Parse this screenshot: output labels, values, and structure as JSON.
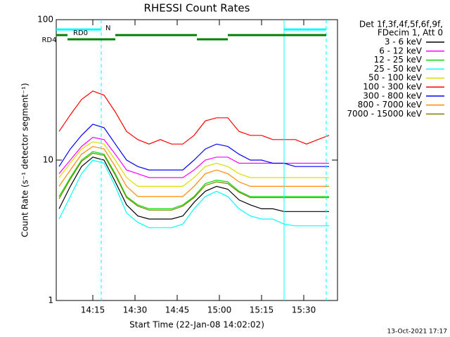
{
  "chart_data": {
    "type": "line",
    "title": "RHESSI Count Rates",
    "x_label": "Start Time (22-Jan-08 14:02:02)",
    "y_label": "Count Rate (s⁻¹ detector segment⁻¹)",
    "legend_header": [
      "Det 1f,3f,4f,5f,6f,9f,",
      "FDecim 1, Att 0"
    ],
    "footer": "13-Oct-2021 17:17",
    "log_y": true,
    "xlim": [
      "14:02",
      "15:42"
    ],
    "xticks": [
      "14:15",
      "14:30",
      "14:45",
      "15:00",
      "15:15",
      "15:30"
    ],
    "ylim": [
      1,
      100
    ],
    "yticks": [
      1,
      10,
      100
    ],
    "x": [
      "14:03",
      "14:07",
      "14:11",
      "14:15",
      "14:19",
      "14:23",
      "14:27",
      "14:31",
      "14:35",
      "14:39",
      "14:43",
      "14:47",
      "14:51",
      "14:55",
      "14:59",
      "15:03",
      "15:07",
      "15:11",
      "15:15",
      "15:19",
      "15:23",
      "15:27",
      "15:31",
      "15:35",
      "15:39"
    ],
    "series": [
      {
        "name": "3 - 6 keV",
        "color": "#000000",
        "values": [
          4.5,
          6.5,
          9,
          10.5,
          10,
          7,
          4.8,
          4,
          3.8,
          3.8,
          3.8,
          4,
          5,
          6,
          6.5,
          6.2,
          5.2,
          4.8,
          4.5,
          4.5,
          4.3,
          4.3,
          4.3,
          4.3,
          4.3
        ]
      },
      {
        "name": "6 - 12 keV",
        "color": "#ff00ff",
        "values": [
          8,
          10,
          12.5,
          14.5,
          14,
          11,
          8.5,
          8,
          7.5,
          7.5,
          7.5,
          7.5,
          8.5,
          10,
          10.5,
          10.5,
          9.5,
          9.5,
          9.5,
          9.5,
          9.5,
          9.5,
          9.5,
          9.5,
          9.5
        ]
      },
      {
        "name": "12 - 25 keV",
        "color": "#00dd00",
        "values": [
          5.5,
          7.5,
          10,
          11.5,
          11,
          8,
          5.5,
          4.8,
          4.5,
          4.5,
          4.5,
          4.8,
          5.5,
          6.8,
          7.2,
          7,
          6,
          5.5,
          5.5,
          5.5,
          5.5,
          5.5,
          5.5,
          5.5,
          5.5
        ]
      },
      {
        "name": "25 - 50 keV",
        "color": "#00ffff",
        "values": [
          3.8,
          5.5,
          8,
          10,
          9.5,
          6.5,
          4.2,
          3.6,
          3.3,
          3.3,
          3.3,
          3.5,
          4.5,
          5.5,
          6,
          5.5,
          4.5,
          4,
          3.8,
          3.8,
          3.5,
          3.4,
          3.4,
          3.4,
          3.4
        ]
      },
      {
        "name": "50 - 100 keV",
        "color": "#dddd00",
        "values": [
          7.5,
          9.5,
          12,
          13.5,
          13,
          10,
          7.5,
          6.5,
          6.5,
          6.5,
          6.5,
          6.5,
          7.5,
          9,
          9.5,
          9,
          8,
          7.5,
          7.5,
          7.5,
          7.5,
          7.5,
          7.5,
          7.5,
          7.5
        ]
      },
      {
        "name": "100 - 300 keV",
        "color": "#ff0000",
        "values": [
          16,
          21,
          27,
          31,
          29,
          22,
          16,
          14,
          13,
          14,
          13,
          13,
          15,
          19,
          20,
          20,
          16,
          15,
          15,
          14,
          14,
          14,
          13,
          14,
          15
        ]
      },
      {
        "name": "300 - 800 keV",
        "color": "#0000ff",
        "values": [
          9,
          12,
          15,
          18,
          17,
          13,
          10,
          9,
          8.5,
          8.5,
          8.5,
          8.5,
          10,
          12,
          13,
          12.5,
          11,
          10,
          10,
          9.5,
          9.5,
          9,
          9,
          9,
          9
        ]
      },
      {
        "name": "800 - 7000 keV",
        "color": "#ff8800",
        "values": [
          6.5,
          8.5,
          11,
          12.5,
          12,
          9,
          6.5,
          5.5,
          5.5,
          5.5,
          5.5,
          5.5,
          6.5,
          8,
          8.5,
          8,
          7,
          6.5,
          6.5,
          6.5,
          6.5,
          6.5,
          6.5,
          6.5,
          6.5
        ]
      },
      {
        "name": "7000 - 15000 keV",
        "color": "#808000",
        "values": [
          5.3,
          7.3,
          9.8,
          11.2,
          10.8,
          7.8,
          5.4,
          4.7,
          4.4,
          4.4,
          4.4,
          4.7,
          5.4,
          6.6,
          7,
          6.8,
          5.9,
          5.4,
          5.4,
          5.4,
          5.4,
          5.4,
          5.4,
          5.4,
          5.4
        ]
      }
    ],
    "flags": [
      {
        "label": "N",
        "color": "#00ffff",
        "row": 0,
        "ranges": [
          [
            "14:02",
            "14:18"
          ],
          [
            "15:23",
            "15:38"
          ]
        ]
      },
      {
        "label": "RD0",
        "color": "#008000",
        "row": 1,
        "ranges": [
          [
            "14:02",
            "14:06"
          ],
          [
            "14:23",
            "14:52"
          ],
          [
            "15:03",
            "15:38"
          ]
        ]
      },
      {
        "label": "RD4",
        "color": "#008000",
        "row": 2,
        "ranges": [
          [
            "14:06",
            "14:23"
          ],
          [
            "14:52",
            "15:03"
          ]
        ]
      }
    ],
    "vlines": [
      {
        "x": "14:18",
        "color": "#00ffff",
        "dashed": true
      },
      {
        "x": "15:23",
        "color": "#00ffff",
        "dashed": false
      },
      {
        "x": "15:38",
        "color": "#00ffff",
        "dashed": true
      }
    ]
  }
}
